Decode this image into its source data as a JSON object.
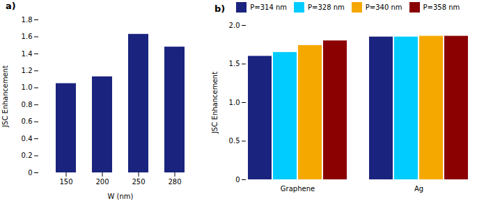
{
  "chart_data": [
    {
      "type": "bar",
      "title": "a)",
      "xlabel": "W (nm)",
      "ylabel": "JSC Enhancement",
      "categories": [
        "150",
        "200",
        "250",
        "280"
      ],
      "values": [
        1.05,
        1.13,
        1.63,
        1.48
      ],
      "color": "#1a237e",
      "ylim": [
        0,
        1.8
      ],
      "yticks": [
        0,
        0.2,
        0.4,
        0.6,
        0.8,
        {
          "value": 1,
          "label": "1.0"
        },
        1.2,
        1.4,
        1.6,
        1.8
      ]
    },
    {
      "type": "bar",
      "title": "b)",
      "ylabel": "JSC Enhancement",
      "categories": [
        "Graphene",
        "Ag"
      ],
      "series": [
        {
          "name": "P=314 nm",
          "color": "#1a237e",
          "values": [
            1.6,
            1.85
          ]
        },
        {
          "name": "P=328 nm",
          "color": "#00ccff",
          "values": [
            1.65,
            1.85
          ]
        },
        {
          "name": "P=340 nm",
          "color": "#f5a800",
          "values": [
            1.74,
            1.86
          ]
        },
        {
          "name": "P=358 nm",
          "color": "#8b0000",
          "values": [
            1.8,
            1.86
          ]
        }
      ],
      "ylim": [
        0,
        2
      ],
      "yticks": [
        0,
        0.5,
        {
          "value": 1,
          "label": "1.0"
        },
        1.5,
        {
          "value": 2,
          "label": "2.0"
        }
      ],
      "legend": "top"
    }
  ]
}
